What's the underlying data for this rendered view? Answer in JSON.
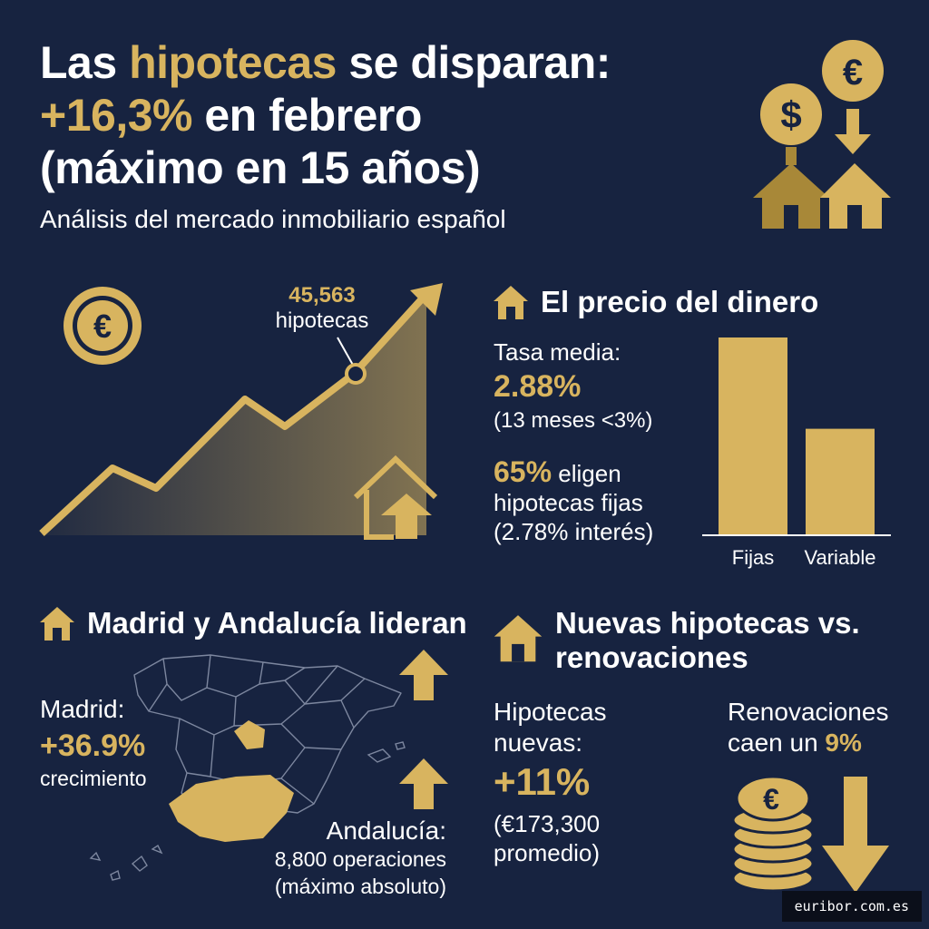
{
  "header": {
    "title_part1": "Las ",
    "title_highlight1": "hipotecas",
    "title_part2": " se disparan:",
    "title_highlight2": "+16,3%",
    "title_part3": " en febrero",
    "title_line3": "(máximo en 15 años)",
    "subtitle": "Análisis del mercado inmobiliario español"
  },
  "growth_chart": {
    "annotation_value": "45,563",
    "annotation_label": "hipotecas"
  },
  "money_price": {
    "title": "El precio del dinero",
    "rate_label": "Tasa media:",
    "rate_value": "2.88%",
    "rate_note": "(13 meses <3%)",
    "fixed_pct": "65%",
    "fixed_text1": " eligen",
    "fixed_text2": "hipotecas fijas",
    "fixed_text3": "(2.78% interés)"
  },
  "chart_data": {
    "type": "bar",
    "categories": [
      "Fijas",
      "Variable"
    ],
    "values": [
      65,
      35
    ],
    "ylim": [
      0,
      65
    ]
  },
  "regions": {
    "title": "Madrid y Andalucía lideran",
    "madrid_label": "Madrid:",
    "madrid_value": "+36.9%",
    "madrid_note": "crecimiento",
    "andalucia_label": "Andalucía:",
    "andalucia_ops": "8,800 operaciones",
    "andalucia_note": "(máximo absoluto)"
  },
  "new_vs_renew": {
    "title_line1": "Nuevas hipotecas vs.",
    "title_line2": "renovaciones",
    "new_label1": "Hipotecas",
    "new_label2": "nuevas:",
    "new_value": "+11%",
    "new_note1": "(€173,300",
    "new_note2": "promedio)",
    "renew_line1": "Renovaciones",
    "renew_line2a": "caen un ",
    "renew_value": "9%"
  },
  "footer": {
    "source": "euribor.com.es"
  },
  "colors": {
    "background": "#172340",
    "accent": "#d8b45f",
    "dark_accent": "#a88838"
  },
  "icons": [
    "dollar-coin-icon",
    "euro-coin-icon",
    "house-icon",
    "euro-medallion-icon",
    "house-up-arrow-icon",
    "up-arrow-icon",
    "down-arrow-icon",
    "coin-stack-icon",
    "spain-map"
  ]
}
